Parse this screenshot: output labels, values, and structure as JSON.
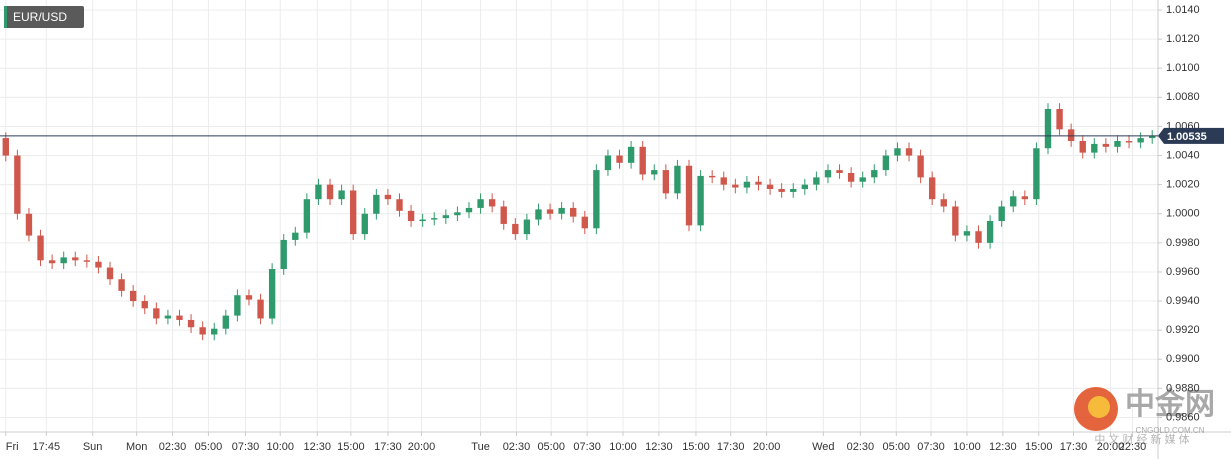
{
  "chart_data": {
    "type": "candlestick",
    "symbol": "EUR/USD",
    "x": [
      0.5,
      1.5,
      2.5,
      3.5,
      4.5,
      5.5,
      6.5,
      7.5,
      8.5,
      9.5,
      10.5,
      11.5,
      12.5,
      13.5,
      14.5,
      15.5,
      16.5,
      17.5,
      18.5,
      19.5,
      20.5,
      21.5,
      22.5,
      23.5,
      24.5,
      25.5,
      26.5,
      27.5,
      28.5,
      29.5,
      30.5,
      31.5,
      32.5,
      33.5,
      34.5,
      35.5,
      36.5,
      37.5,
      38.5,
      39.5,
      40.5,
      41.5,
      42.5,
      43.5,
      44.5,
      45.5,
      46.5,
      47.5,
      48.5,
      49.5,
      50.5,
      51.5,
      52.5,
      53.5,
      54.5,
      55.5,
      56.5,
      57.5,
      58.5,
      59.5,
      60.5,
      61.5,
      62.5,
      63.5,
      64.5,
      65.5,
      66.5,
      67.5,
      68.5,
      69.5,
      70.5,
      71.5,
      72.5,
      73.5,
      74.5,
      75.5,
      76.5,
      77.5,
      78.5,
      79.5,
      80.5,
      81.5,
      82.5,
      83.5,
      84.5,
      85.5,
      86.5,
      87.5,
      88.5,
      89.5,
      90.5,
      91.5,
      92.5,
      93.5,
      94.5,
      95.5,
      96.5,
      97.5,
      98.5,
      99.5
    ],
    "open": [
      1.0052,
      1.004,
      1.0,
      0.9985,
      0.9968,
      0.9966,
      0.997,
      0.9968,
      0.9967,
      0.9963,
      0.9955,
      0.9947,
      0.994,
      0.9935,
      0.9928,
      0.993,
      0.9927,
      0.9922,
      0.9917,
      0.9921,
      0.993,
      0.9944,
      0.9941,
      0.9928,
      0.9962,
      0.9982,
      0.9987,
      1.001,
      1.002,
      1.001,
      1.0016,
      0.9986,
      1.0,
      1.0013,
      1.001,
      1.0002,
      0.9995,
      0.9996,
      0.9997,
      0.9999,
      1.0001,
      1.0004,
      1.001,
      1.0005,
      0.9993,
      0.9986,
      0.9996,
      1.0003,
      1.0,
      1.0004,
      0.9998,
      0.999,
      1.003,
      1.004,
      1.0035,
      1.0046,
      1.0027,
      1.003,
      1.0014,
      1.0033,
      0.9992,
      1.0026,
      1.0025,
      1.002,
      1.0018,
      1.0022,
      1.002,
      1.0017,
      1.0015,
      1.0017,
      1.002,
      1.0025,
      1.003,
      1.0028,
      1.0022,
      1.0025,
      1.003,
      1.004,
      1.0045,
      1.004,
      1.0025,
      1.001,
      1.0005,
      0.9985,
      0.9988,
      0.998,
      0.9995,
      1.0005,
      1.0012,
      1.001,
      1.0045,
      1.0072,
      1.0058,
      1.005,
      1.0042,
      1.0048,
      1.0046,
      1.005,
      1.0049,
      1.0052
    ],
    "high": [
      1.0056,
      1.0044,
      1.0004,
      0.9989,
      0.9972,
      0.9974,
      0.9974,
      0.9972,
      0.9971,
      0.9967,
      0.9959,
      0.9951,
      0.9944,
      0.9939,
      0.9934,
      0.9934,
      0.9931,
      0.9926,
      0.9925,
      0.9934,
      0.9948,
      0.9948,
      0.9945,
      0.9966,
      0.9986,
      0.9991,
      1.0014,
      1.0024,
      1.0024,
      1.002,
      1.002,
      1.0004,
      1.0017,
      1.0017,
      1.0014,
      1.0006,
      1.0,
      1.0001,
      1.0003,
      1.0005,
      1.0008,
      1.0014,
      1.0014,
      1.0009,
      0.9997,
      1.0,
      1.0007,
      1.0007,
      1.0008,
      1.0008,
      1.0002,
      1.0034,
      1.0044,
      1.0044,
      1.005,
      1.005,
      1.0034,
      1.0034,
      1.0037,
      1.0037,
      1.003,
      1.003,
      1.0029,
      1.0024,
      1.0026,
      1.0026,
      1.0024,
      1.0021,
      1.0021,
      1.0024,
      1.0029,
      1.0034,
      1.0034,
      1.0032,
      1.0029,
      1.0034,
      1.0044,
      1.0049,
      1.0049,
      1.0044,
      1.0029,
      1.0014,
      1.0009,
      0.9992,
      0.9992,
      0.9999,
      1.0009,
      1.0016,
      1.0016,
      1.0049,
      1.0076,
      1.0076,
      1.0062,
      1.0054,
      1.0052,
      1.0052,
      1.0054,
      1.0054,
      1.0056,
      1.00575
    ],
    "low": [
      1.0036,
      0.9996,
      0.9981,
      0.9964,
      0.9962,
      0.9962,
      0.9964,
      0.9963,
      0.9959,
      0.9951,
      0.9943,
      0.9936,
      0.9931,
      0.9924,
      0.9924,
      0.9923,
      0.9918,
      0.9913,
      0.9913,
      0.9917,
      0.9926,
      0.9937,
      0.9924,
      0.9924,
      0.9958,
      0.9978,
      0.9983,
      1.0006,
      1.0006,
      1.0006,
      0.9982,
      0.9982,
      0.9996,
      1.0006,
      0.9998,
      0.9991,
      0.9991,
      0.9992,
      0.9993,
      0.9995,
      0.9997,
      1.0,
      1.0001,
      0.9989,
      0.9982,
      0.9982,
      0.9992,
      0.9996,
      0.9996,
      0.9994,
      0.9986,
      0.9986,
      1.0026,
      1.0031,
      1.0031,
      1.0023,
      1.0023,
      1.001,
      1.001,
      0.9988,
      0.9988,
      1.0021,
      1.0016,
      1.0014,
      1.0014,
      1.0016,
      1.0013,
      1.0011,
      1.0011,
      1.0013,
      1.0016,
      1.0021,
      1.0024,
      1.0018,
      1.0018,
      1.0021,
      1.0026,
      1.0036,
      1.0036,
      1.0021,
      1.0006,
      1.0001,
      0.9981,
      0.9981,
      0.9976,
      0.9976,
      0.9991,
      1.0001,
      1.0006,
      1.0006,
      1.0041,
      1.0054,
      1.0046,
      1.0038,
      1.0038,
      1.0042,
      1.0042,
      1.0045,
      1.0045,
      1.0048
    ],
    "close": [
      1.004,
      1.0,
      0.9985,
      0.9968,
      0.9966,
      0.997,
      0.9968,
      0.9967,
      0.9963,
      0.9955,
      0.9947,
      0.994,
      0.9935,
      0.9928,
      0.993,
      0.9927,
      0.9922,
      0.9917,
      0.9921,
      0.993,
      0.9944,
      0.9941,
      0.9928,
      0.9962,
      0.9982,
      0.9987,
      1.001,
      1.002,
      1.001,
      1.0016,
      0.9986,
      1.0,
      1.0013,
      1.001,
      1.0002,
      0.9995,
      0.9996,
      0.9997,
      0.9999,
      1.0001,
      1.0004,
      1.001,
      1.0005,
      0.9993,
      0.9986,
      0.9996,
      1.0003,
      1.0,
      1.0004,
      0.9998,
      0.999,
      1.003,
      1.004,
      1.0035,
      1.0046,
      1.0027,
      1.003,
      1.0014,
      1.0033,
      0.9992,
      1.0026,
      1.0025,
      1.002,
      1.0018,
      1.0022,
      1.002,
      1.0017,
      1.0015,
      1.0017,
      1.002,
      1.0025,
      1.003,
      1.0028,
      1.0022,
      1.0025,
      1.003,
      1.004,
      1.0045,
      1.004,
      1.0025,
      1.001,
      1.0005,
      0.9985,
      0.9988,
      0.998,
      0.9995,
      1.0005,
      1.0012,
      1.001,
      1.0045,
      1.0072,
      1.0058,
      1.005,
      1.0042,
      1.0048,
      1.0046,
      1.005,
      1.0049,
      1.0052,
      1.00535
    ],
    "up_color": "#2f9a6c",
    "down_color": "#d0574b",
    "last_price": 1.00535,
    "last_price_color": "#2b3b55",
    "xlim": [
      0,
      100
    ],
    "ylim": [
      0.985,
      1.01469
    ],
    "xticks": [
      {
        "value": 0.5,
        "label": "Fri"
      },
      {
        "value": 4,
        "label": "17:45"
      },
      {
        "value": 8,
        "label": "Sun"
      },
      {
        "value": 11.8,
        "label": "Mon"
      },
      {
        "value": 14.9,
        "label": "02:30"
      },
      {
        "value": 18,
        "label": "05:00"
      },
      {
        "value": 21.2,
        "label": "07:30"
      },
      {
        "value": 24.2,
        "label": "10:00"
      },
      {
        "value": 27.4,
        "label": "12:30"
      },
      {
        "value": 30.3,
        "label": "15:00"
      },
      {
        "value": 33.5,
        "label": "17:30"
      },
      {
        "value": 36.4,
        "label": "20:00"
      },
      {
        "value": 41.5,
        "label": "Tue"
      },
      {
        "value": 44.6,
        "label": "02:30"
      },
      {
        "value": 47.6,
        "label": "05:00"
      },
      {
        "value": 50.7,
        "label": "07:30"
      },
      {
        "value": 53.8,
        "label": "10:00"
      },
      {
        "value": 56.9,
        "label": "12:30"
      },
      {
        "value": 60.1,
        "label": "15:00"
      },
      {
        "value": 63.1,
        "label": "17:30"
      },
      {
        "value": 66.2,
        "label": "20:00"
      },
      {
        "value": 71.1,
        "label": "Wed"
      },
      {
        "value": 74.3,
        "label": "02:30"
      },
      {
        "value": 77.4,
        "label": "05:00"
      },
      {
        "value": 80.4,
        "label": "07:30"
      },
      {
        "value": 83.5,
        "label": "10:00"
      },
      {
        "value": 86.6,
        "label": "12:30"
      },
      {
        "value": 89.7,
        "label": "15:00"
      },
      {
        "value": 92.7,
        "label": "17:30"
      },
      {
        "value": 95.9,
        "label": "20:00"
      },
      {
        "value": 97.8,
        "label": "22:30"
      }
    ],
    "yticks": [
      {
        "value": 1.014,
        "label": "1.0140"
      },
      {
        "value": 1.012,
        "label": "1.0120"
      },
      {
        "value": 1.01,
        "label": "1.0100"
      },
      {
        "value": 1.008,
        "label": "1.0080"
      },
      {
        "value": 1.006,
        "label": "1.0060"
      },
      {
        "value": 1.004,
        "label": "1.0040"
      },
      {
        "value": 1.002,
        "label": "1.0020"
      },
      {
        "value": 1.0,
        "label": "1.0000"
      },
      {
        "value": 0.998,
        "label": "0.9980"
      },
      {
        "value": 0.996,
        "label": "0.9960"
      },
      {
        "value": 0.994,
        "label": "0.9940"
      },
      {
        "value": 0.992,
        "label": "0.9920"
      },
      {
        "value": 0.99,
        "label": "0.9900"
      },
      {
        "value": 0.988,
        "label": "0.9880"
      },
      {
        "value": 0.986,
        "label": "0.9860"
      }
    ],
    "grid": true
  },
  "watermark": {
    "brand": "中金网",
    "url": "CNGOLD.COM.CN",
    "slogan": "中 文 财 经 新 媒 体"
  }
}
